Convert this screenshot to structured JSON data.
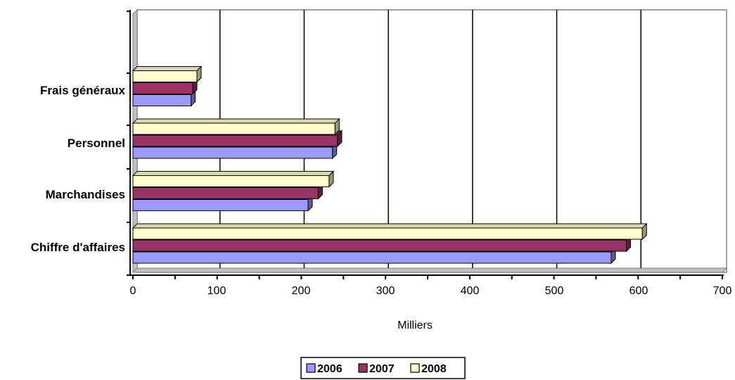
{
  "chart_data": {
    "type": "bar",
    "orientation": "horizontal",
    "style": "3d",
    "categories": [
      "Chiffre d'affaires",
      "Marchandises",
      "Personnel",
      "Frais généraux"
    ],
    "series": [
      {
        "name": "2006",
        "color": "#9999FF",
        "values": [
          568,
          208,
          237,
          69
        ]
      },
      {
        "name": "2007",
        "color": "#993366",
        "values": [
          586,
          220,
          243,
          71
        ]
      },
      {
        "name": "2008",
        "color": "#FFFFCC",
        "values": [
          605,
          233,
          240,
          76
        ]
      }
    ],
    "xlabel": "Milliers",
    "xlim": [
      0,
      700
    ],
    "xticks": [
      "0",
      "100",
      "200",
      "300",
      "400",
      "500",
      "600",
      "700"
    ],
    "grid": true,
    "legend_position": "bottom"
  }
}
